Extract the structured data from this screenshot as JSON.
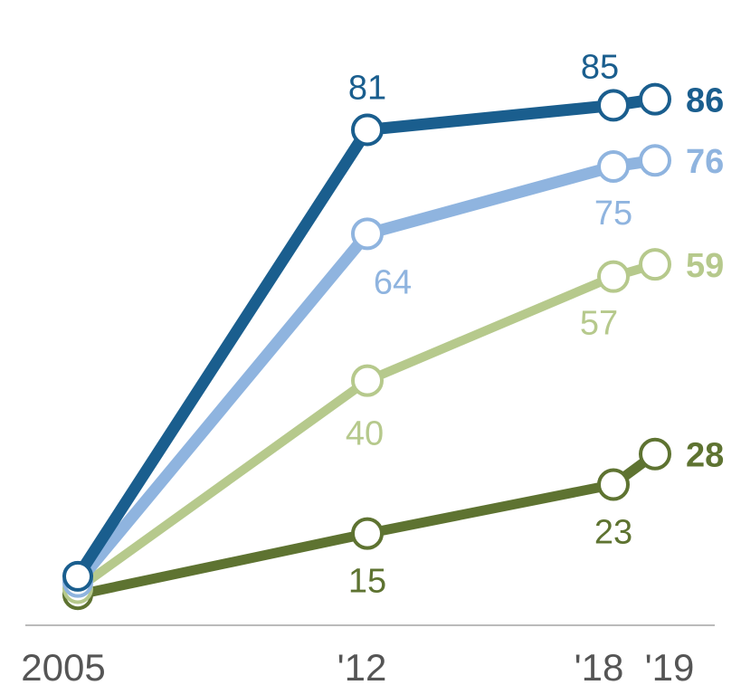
{
  "chart_data": {
    "type": "line",
    "x": [
      2005,
      2012,
      2018,
      2019
    ],
    "x_tick_labels": [
      "2005",
      "'12",
      "'18",
      "'19"
    ],
    "ylim": [
      0,
      100
    ],
    "grid": false,
    "series": [
      {
        "values": [
          8,
          81,
          85,
          86
        ],
        "color": "#1a5e8e",
        "point_labels": [
          "",
          "81",
          "85",
          "86"
        ]
      },
      {
        "values": [
          7,
          64,
          75,
          76
        ],
        "color": "#8fb4df",
        "point_labels": [
          "",
          "64",
          "75",
          "76"
        ]
      },
      {
        "values": [
          6,
          40,
          57,
          59
        ],
        "color": "#b6c98c",
        "point_labels": [
          "",
          "40",
          "57",
          "59"
        ]
      },
      {
        "values": [
          5,
          15,
          23,
          28
        ],
        "color": "#5e7331",
        "point_labels": [
          "",
          "15",
          "23",
          "28"
        ]
      }
    ]
  }
}
